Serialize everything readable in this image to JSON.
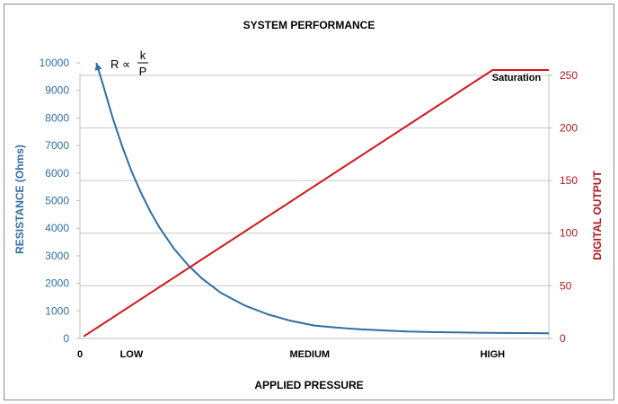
{
  "chart_data": {
    "type": "line",
    "title": "SYSTEM PERFORMANCE",
    "xlabel": "APPLIED PRESSURE",
    "x_ticks": [
      {
        "label": "0",
        "x": 0
      },
      {
        "label": "LOW",
        "x": 1.1
      },
      {
        "label": "MEDIUM",
        "x": 4.9
      },
      {
        "label": "HIGH",
        "x": 8.8
      }
    ],
    "xlim": [
      0,
      10
    ],
    "y_left": {
      "label": "RESISTANCE (Ohms)",
      "lim": [
        0,
        10000
      ],
      "ticks": [
        "0",
        "1000",
        "2000",
        "3000",
        "4000",
        "5000",
        "6000",
        "7000",
        "8000",
        "9000",
        "10000"
      ],
      "color": "#2f6ea5"
    },
    "y_right": {
      "label": "DIGITAL OUTPUT",
      "lim": [
        0,
        255
      ],
      "ticks": [
        "0",
        "50",
        "100",
        "150",
        "200",
        "250"
      ],
      "color": "#b3171b"
    },
    "grid": true,
    "series": [
      {
        "axis": "left",
        "color": "#2f6ea5",
        "x": [
          0.35,
          0.5,
          0.7,
          0.9,
          1.1,
          1.3,
          1.5,
          1.7,
          2.0,
          2.3,
          2.6,
          3.0,
          3.5,
          4.0,
          4.5,
          5.0,
          5.5,
          6.0,
          6.5,
          7.0,
          7.5,
          8.0,
          8.5,
          9.0,
          9.5,
          10.0
        ],
        "values": [
          10000,
          9160,
          8000,
          6970,
          6070,
          5290,
          4610,
          4020,
          3270,
          2670,
          2180,
          1660,
          1210,
          880,
          640,
          470,
          390,
          330,
          290,
          250,
          230,
          220,
          210,
          200,
          195,
          190
        ]
      },
      {
        "axis": "right",
        "color": "#d0171b",
        "x": [
          0.08,
          8.8,
          10.0
        ],
        "values": [
          2,
          255,
          255
        ]
      }
    ],
    "annotations": [
      {
        "text": "R ∝",
        "numerator": "k",
        "denominator": "P",
        "position": "top-left"
      },
      {
        "text": "Saturation",
        "position": "top-right"
      }
    ]
  }
}
